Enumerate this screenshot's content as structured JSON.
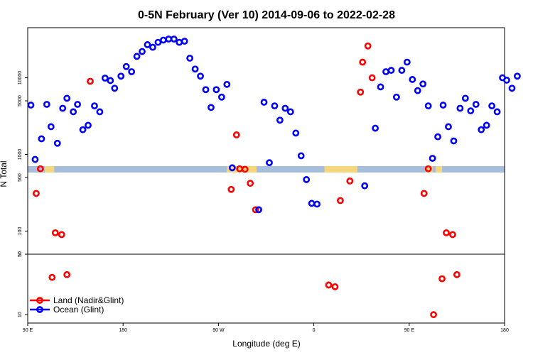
{
  "chart_data": {
    "type": "scatter",
    "title": "0-5N February (Ver 10)   2014-09-06 to 2022-02-28",
    "xlabel": "Longitude (deg E)",
    "ylabel": "N Total",
    "x_ticks": [
      {
        "pos": 90,
        "label": "90 E"
      },
      {
        "pos": 180,
        "label": "180"
      },
      {
        "pos": 270,
        "label": "90 W"
      },
      {
        "pos": 360,
        "label": "0"
      },
      {
        "pos": 450,
        "label": "90 E"
      },
      {
        "pos": 540,
        "label": "180"
      }
    ],
    "xlim": [
      90,
      540
    ],
    "upper_panel": {
      "scale": "log",
      "ylim": [
        50,
        45000
      ],
      "ticks": [
        50,
        100,
        500,
        1000,
        5000,
        10000
      ]
    },
    "lower_panel": {
      "scale": "log",
      "ylim": [
        8,
        50
      ],
      "ticks": [
        10,
        50
      ]
    },
    "series": [
      {
        "name": "Land (Nadir&Glint)",
        "color": "#ff0000",
        "points": [
          [
            98,
            310
          ],
          [
            102,
            650
          ],
          [
            113,
            27
          ],
          [
            116,
            95
          ],
          [
            122,
            90
          ],
          [
            127,
            29
          ],
          [
            149,
            9000
          ],
          [
            282,
            350
          ],
          [
            287,
            1800
          ],
          [
            290,
            650
          ],
          [
            295,
            640
          ],
          [
            300,
            420
          ],
          [
            305,
            190
          ],
          [
            374,
            22
          ],
          [
            380,
            21
          ],
          [
            385,
            250
          ],
          [
            394,
            450
          ],
          [
            404,
            6500
          ],
          [
            406,
            16000
          ],
          [
            411,
            26000
          ],
          [
            415,
            10000
          ],
          [
            464,
            310
          ],
          [
            468,
            650
          ],
          [
            473,
            10
          ],
          [
            481,
            26
          ],
          [
            485,
            95
          ],
          [
            491,
            90
          ],
          [
            495,
            29
          ]
        ]
      },
      {
        "name": "Ocean (Glint)",
        "color": "#0000ff",
        "points": [
          [
            93,
            4400
          ],
          [
            97,
            860
          ],
          [
            103,
            1600
          ],
          [
            108,
            4500
          ],
          [
            112,
            2300
          ],
          [
            118,
            1400
          ],
          [
            123,
            4000
          ],
          [
            127,
            5400
          ],
          [
            133,
            3600
          ],
          [
            137,
            4500
          ],
          [
            142,
            2100
          ],
          [
            147,
            2400
          ],
          [
            153,
            4300
          ],
          [
            158,
            3600
          ],
          [
            163,
            9900
          ],
          [
            168,
            9200
          ],
          [
            172,
            7300
          ],
          [
            178,
            10500
          ],
          [
            183,
            14000
          ],
          [
            188,
            12000
          ],
          [
            193,
            19000
          ],
          [
            198,
            22000
          ],
          [
            203,
            27000
          ],
          [
            208,
            25000
          ],
          [
            213,
            29000
          ],
          [
            218,
            31000
          ],
          [
            223,
            32000
          ],
          [
            228,
            32000
          ],
          [
            233,
            29000
          ],
          [
            238,
            30000
          ],
          [
            243,
            18000
          ],
          [
            248,
            13000
          ],
          [
            253,
            10500
          ],
          [
            258,
            7000
          ],
          [
            263,
            4100
          ],
          [
            268,
            7000
          ],
          [
            273,
            5600
          ],
          [
            278,
            8200
          ],
          [
            283,
            670
          ],
          [
            308,
            190
          ],
          [
            313,
            4800
          ],
          [
            318,
            780
          ],
          [
            323,
            4300
          ],
          [
            328,
            2800
          ],
          [
            333,
            4000
          ],
          [
            338,
            3600
          ],
          [
            343,
            1900
          ],
          [
            348,
            960
          ],
          [
            353,
            470
          ],
          [
            358,
            230
          ],
          [
            363,
            225
          ],
          [
            408,
            390
          ],
          [
            418,
            2200
          ],
          [
            423,
            7600
          ],
          [
            428,
            12000
          ],
          [
            433,
            12500
          ],
          [
            438,
            5600
          ],
          [
            443,
            12500
          ],
          [
            448,
            16000
          ],
          [
            453,
            9500
          ],
          [
            458,
            6800
          ],
          [
            463,
            8300
          ],
          [
            468,
            4300
          ],
          [
            472,
            890
          ],
          [
            477,
            1700
          ],
          [
            482,
            4400
          ],
          [
            487,
            2300
          ],
          [
            492,
            1500
          ],
          [
            498,
            4000
          ],
          [
            503,
            5400
          ],
          [
            508,
            3700
          ],
          [
            513,
            4500
          ],
          [
            518,
            2100
          ],
          [
            523,
            2400
          ],
          [
            528,
            4300
          ],
          [
            533,
            3600
          ],
          [
            538,
            10000
          ],
          [
            542,
            9300
          ],
          [
            547,
            7300
          ],
          [
            552,
            10500
          ]
        ]
      }
    ],
    "legend": {
      "placement": "bottom-left"
    }
  }
}
